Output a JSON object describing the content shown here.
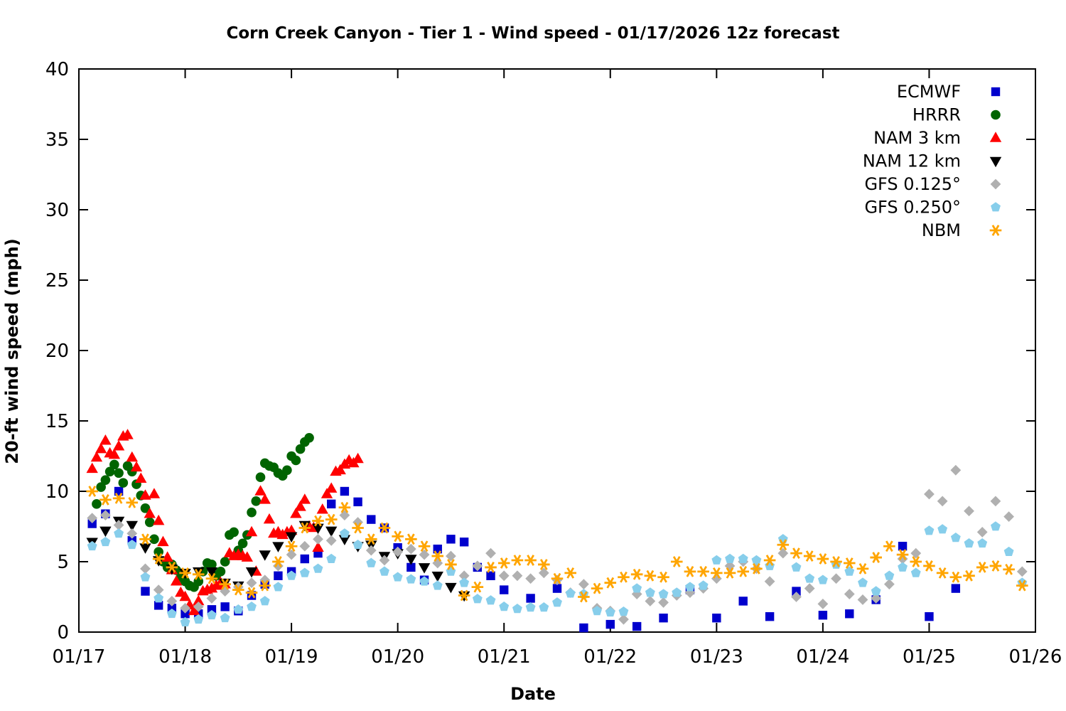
{
  "title": "Corn Creek Canyon - Tier 1 - Wind speed - 01/17/2026 12z forecast",
  "axes": {
    "x_label": "Date",
    "y_label": "20-ft wind speed (mph)"
  },
  "chart_data": {
    "type": "scatter",
    "title": "Corn Creek Canyon - Tier 1 - Wind speed - 01/17/2026 12z forecast",
    "xlabel": "Date",
    "ylabel": "20-ft wind speed (mph)",
    "x_tick_labels": [
      "01/17",
      "01/18",
      "01/19",
      "01/20",
      "01/21",
      "01/22",
      "01/23",
      "01/24",
      "01/25",
      "01/26"
    ],
    "x_domain_days": [
      0,
      9
    ],
    "ylim": [
      0,
      40
    ],
    "y_ticks": [
      0,
      5,
      10,
      15,
      20,
      25,
      30,
      35,
      40
    ],
    "grid": false,
    "legend_position": "inside-top-right",
    "time_unit": "days since 01/17 00z",
    "series": [
      {
        "name": "ECMWF",
        "marker": "square",
        "color": "#0000cd",
        "segments": [
          {
            "start_day": 0.125,
            "step_days": 0.125,
            "values": [
              7.7,
              8.4,
              10.0,
              6.5,
              2.9,
              1.9,
              1.7,
              1.3,
              1.3,
              1.6,
              1.8,
              1.5,
              2.6,
              3.4,
              4.0,
              4.3
            ]
          },
          {
            "start_day": 2.125,
            "step_days": 0.125,
            "values": [
              5.2,
              5.6,
              9.1,
              10.0,
              9.25,
              8.0,
              7.4,
              6.0
            ]
          },
          {
            "start_day": 3.125,
            "step_days": 0.125,
            "values": [
              4.6,
              3.7,
              5.9,
              6.6,
              6.4,
              4.6,
              4.0,
              3.0
            ]
          },
          {
            "start_day": 4.25,
            "step_days": 0.25,
            "values": [
              2.4,
              3.1,
              0.3,
              0.55,
              0.4,
              1.0,
              3.0,
              1.0,
              2.2,
              1.1,
              2.9,
              1.2,
              1.3,
              2.3,
              6.1,
              1.1,
              3.1
            ]
          }
        ]
      },
      {
        "name": "HRRR",
        "marker": "circle",
        "color": "#006400",
        "segments": [
          {
            "start_day": 0.1667,
            "step_days": 0.04167,
            "values": [
              9.1,
              10.3,
              10.8,
              11.4,
              11.9,
              11.3,
              10.6,
              11.8,
              11.4,
              10.5,
              9.7,
              8.8,
              7.8,
              6.6,
              5.7,
              5.0,
              4.6,
              4.8,
              4.4,
              3.9,
              3.6,
              3.3,
              3.2,
              3.6,
              4.3,
              4.9,
              4.8,
              4.0,
              4.3,
              5.0,
              6.9,
              7.1,
              5.8,
              6.3,
              6.9,
              8.5,
              9.3,
              11.0,
              12.0,
              11.8,
              11.7,
              11.3,
              11.1,
              11.5,
              12.5,
              12.2,
              13.0,
              13.5,
              13.8
            ]
          }
        ]
      },
      {
        "name": "NAM 3 km",
        "marker": "triangle-up",
        "color": "#ff0000",
        "segments": [
          {
            "start_day": 0.125,
            "step_days": 0.04167,
            "values": [
              11.6,
              12.4,
              13.0,
              13.6,
              12.7,
              12.6,
              13.2,
              13.9,
              14.0,
              12.4,
              11.7,
              10.9,
              9.7,
              8.4,
              9.8,
              7.9,
              6.4,
              5.3,
              4.4,
              3.6,
              2.8,
              2.5,
              1.9,
              1.5,
              2.2,
              2.9,
              3.0,
              3.1,
              3.3,
              3.5,
              3.4,
              5.6,
              5.4,
              5.5,
              5.4,
              5.3,
              7.1,
              4.3,
              10.0,
              9.4,
              8.0,
              7.0,
              7.1,
              6.9,
              7.1,
              7.2,
              8.4,
              8.9,
              9.4,
              7.5,
              7.4,
              6.0,
              8.7,
              9.8,
              10.2,
              11.4,
              11.5,
              11.9,
              12.2,
              12.0,
              12.3
            ]
          }
        ]
      },
      {
        "name": "NAM 12 km",
        "marker": "triangle-down",
        "color": "#000000",
        "segments": [
          {
            "start_day": 0.125,
            "step_days": 0.125,
            "values": [
              6.4,
              7.2,
              7.9,
              7.6,
              6.0,
              5.1,
              4.5,
              4.2,
              4.3,
              4.3,
              3.5,
              3.3,
              4.3,
              5.5,
              6.1,
              6.8,
              7.6,
              7.4,
              7.2,
              6.6,
              6.1,
              6.2,
              5.4,
              5.6,
              5.2,
              4.6,
              4.0,
              3.2,
              2.6
            ]
          }
        ]
      },
      {
        "name": "GFS 0.125°",
        "marker": "diamond",
        "color": "#b0b0b0",
        "segments": [
          {
            "start_day": 0.125,
            "step_days": 0.125,
            "values": [
              8.1,
              8.3,
              7.6,
              7.0,
              4.5,
              3.0,
              2.2,
              1.7,
              1.8,
              2.4,
              2.9,
              3.2,
              3.5,
              3.7,
              4.7,
              5.5,
              6.1,
              6.6,
              6.5,
              8.3,
              7.8,
              5.8,
              5.1,
              5.7,
              5.9,
              5.5,
              4.9,
              5.4,
              4.0,
              4.7,
              5.6,
              4.0,
              4.0,
              3.8,
              4.2,
              3.7,
              2.8,
              3.4,
              1.7,
              1.5,
              0.9,
              2.7,
              2.2,
              2.1,
              2.6,
              2.8,
              3.1,
              3.8,
              4.7,
              5.0,
              4.5,
              3.6,
              5.6,
              2.5,
              3.1,
              2.0,
              3.8,
              2.7,
              2.3,
              2.4,
              3.4,
              5.2,
              5.6,
              9.8,
              9.3,
              11.5,
              8.6,
              7.1,
              9.3,
              8.2,
              4.3
            ]
          }
        ]
      },
      {
        "name": "GFS 0.250°",
        "marker": "pentagon",
        "color": "#87ceeb",
        "segments": [
          {
            "start_day": 0.125,
            "step_days": 0.125,
            "values": [
              6.1,
              6.4,
              7.0,
              6.2,
              3.9,
              2.4,
              1.3,
              0.7,
              0.9,
              1.2,
              1.0,
              1.6,
              1.8,
              2.2,
              3.2,
              4.0,
              4.2,
              4.5,
              5.2,
              7.0,
              6.2,
              4.9,
              4.3,
              3.9,
              3.75,
              3.6,
              3.3,
              4.3,
              3.5,
              2.35,
              2.25,
              1.8,
              1.65,
              1.75,
              1.75,
              2.1,
              2.75,
              2.7,
              1.5,
              1.4,
              1.45,
              3.1,
              2.8,
              2.7,
              2.8,
              3.2,
              3.3,
              5.1,
              5.2,
              5.2,
              5.1,
              4.7,
              6.6,
              4.6,
              3.8,
              3.7,
              4.8,
              4.3,
              3.5,
              2.9,
              4.0,
              4.6,
              4.2,
              7.2,
              7.3,
              6.7,
              6.3,
              6.3,
              7.5,
              5.7,
              3.5
            ]
          }
        ]
      },
      {
        "name": "NBM",
        "marker": "asterisk",
        "color": "#ffa500",
        "segments": [
          {
            "start_day": 0.125,
            "step_days": 0.125,
            "values": [
              10.0,
              9.4,
              9.5,
              9.2,
              6.6,
              5.2,
              4.6,
              4.2,
              4.1,
              3.8,
              3.4,
              3.0,
              2.8,
              3.3,
              5.0,
              6.1,
              7.4,
              7.9,
              8.0,
              8.85,
              7.4,
              6.6,
              7.4,
              6.8,
              6.6,
              6.1,
              5.4,
              4.8,
              2.6,
              3.2,
              4.6,
              4.9,
              5.1,
              5.1,
              4.8,
              3.8,
              4.2,
              2.5,
              3.1,
              3.5,
              3.9,
              4.1,
              4.0,
              3.9,
              5.0,
              4.3,
              4.3,
              4.2,
              4.2,
              4.3,
              4.5,
              5.1,
              6.2,
              5.6,
              5.4,
              5.2,
              5.0,
              4.9,
              4.5,
              5.3,
              6.1,
              5.5,
              5.0,
              4.7,
              4.2,
              3.9,
              4.0,
              4.6,
              4.7,
              4.45,
              3.3
            ]
          }
        ]
      }
    ]
  }
}
